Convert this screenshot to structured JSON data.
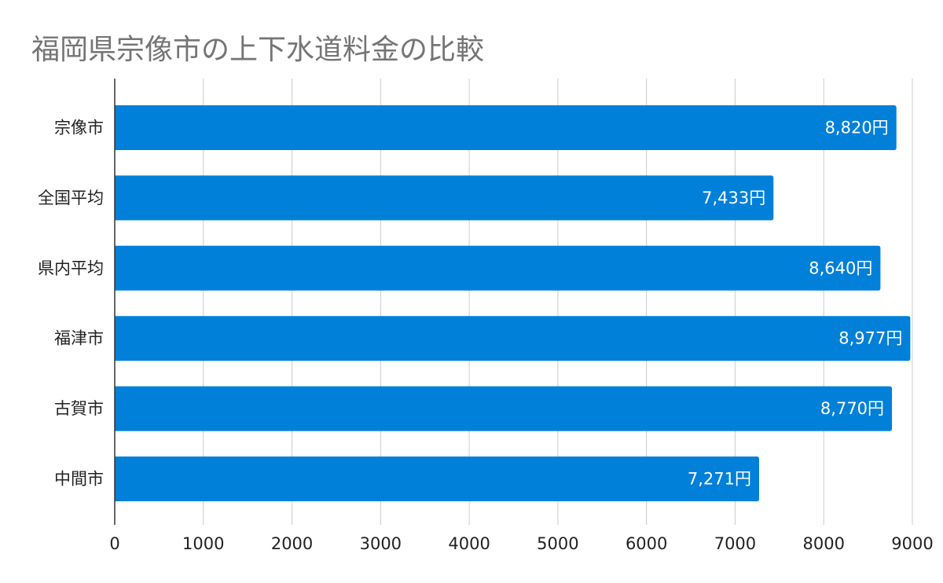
{
  "chart_data": {
    "type": "bar",
    "orientation": "horizontal",
    "title": "福岡県宗像市の上下水道料金の比較",
    "categories": [
      "宗像市",
      "全国平均",
      "県内平均",
      "福津市",
      "古賀市",
      "中間市"
    ],
    "values": [
      8820,
      7433,
      8640,
      8977,
      8770,
      7271
    ],
    "data_labels": [
      "8,820円",
      "7,433円",
      "8,640円",
      "8,977円",
      "8,770円",
      "7,271円"
    ],
    "xlim": [
      0,
      9000
    ],
    "x_ticks": [
      "0",
      "1000",
      "2000",
      "3000",
      "4000",
      "5000",
      "6000",
      "7000",
      "8000",
      "9000"
    ],
    "xlabel": "",
    "ylabel": "",
    "grid": "vertical",
    "legend": "none",
    "bar_color": "#0180D9",
    "grid_color": "#CCCCCC",
    "axis_color": "#333333"
  }
}
